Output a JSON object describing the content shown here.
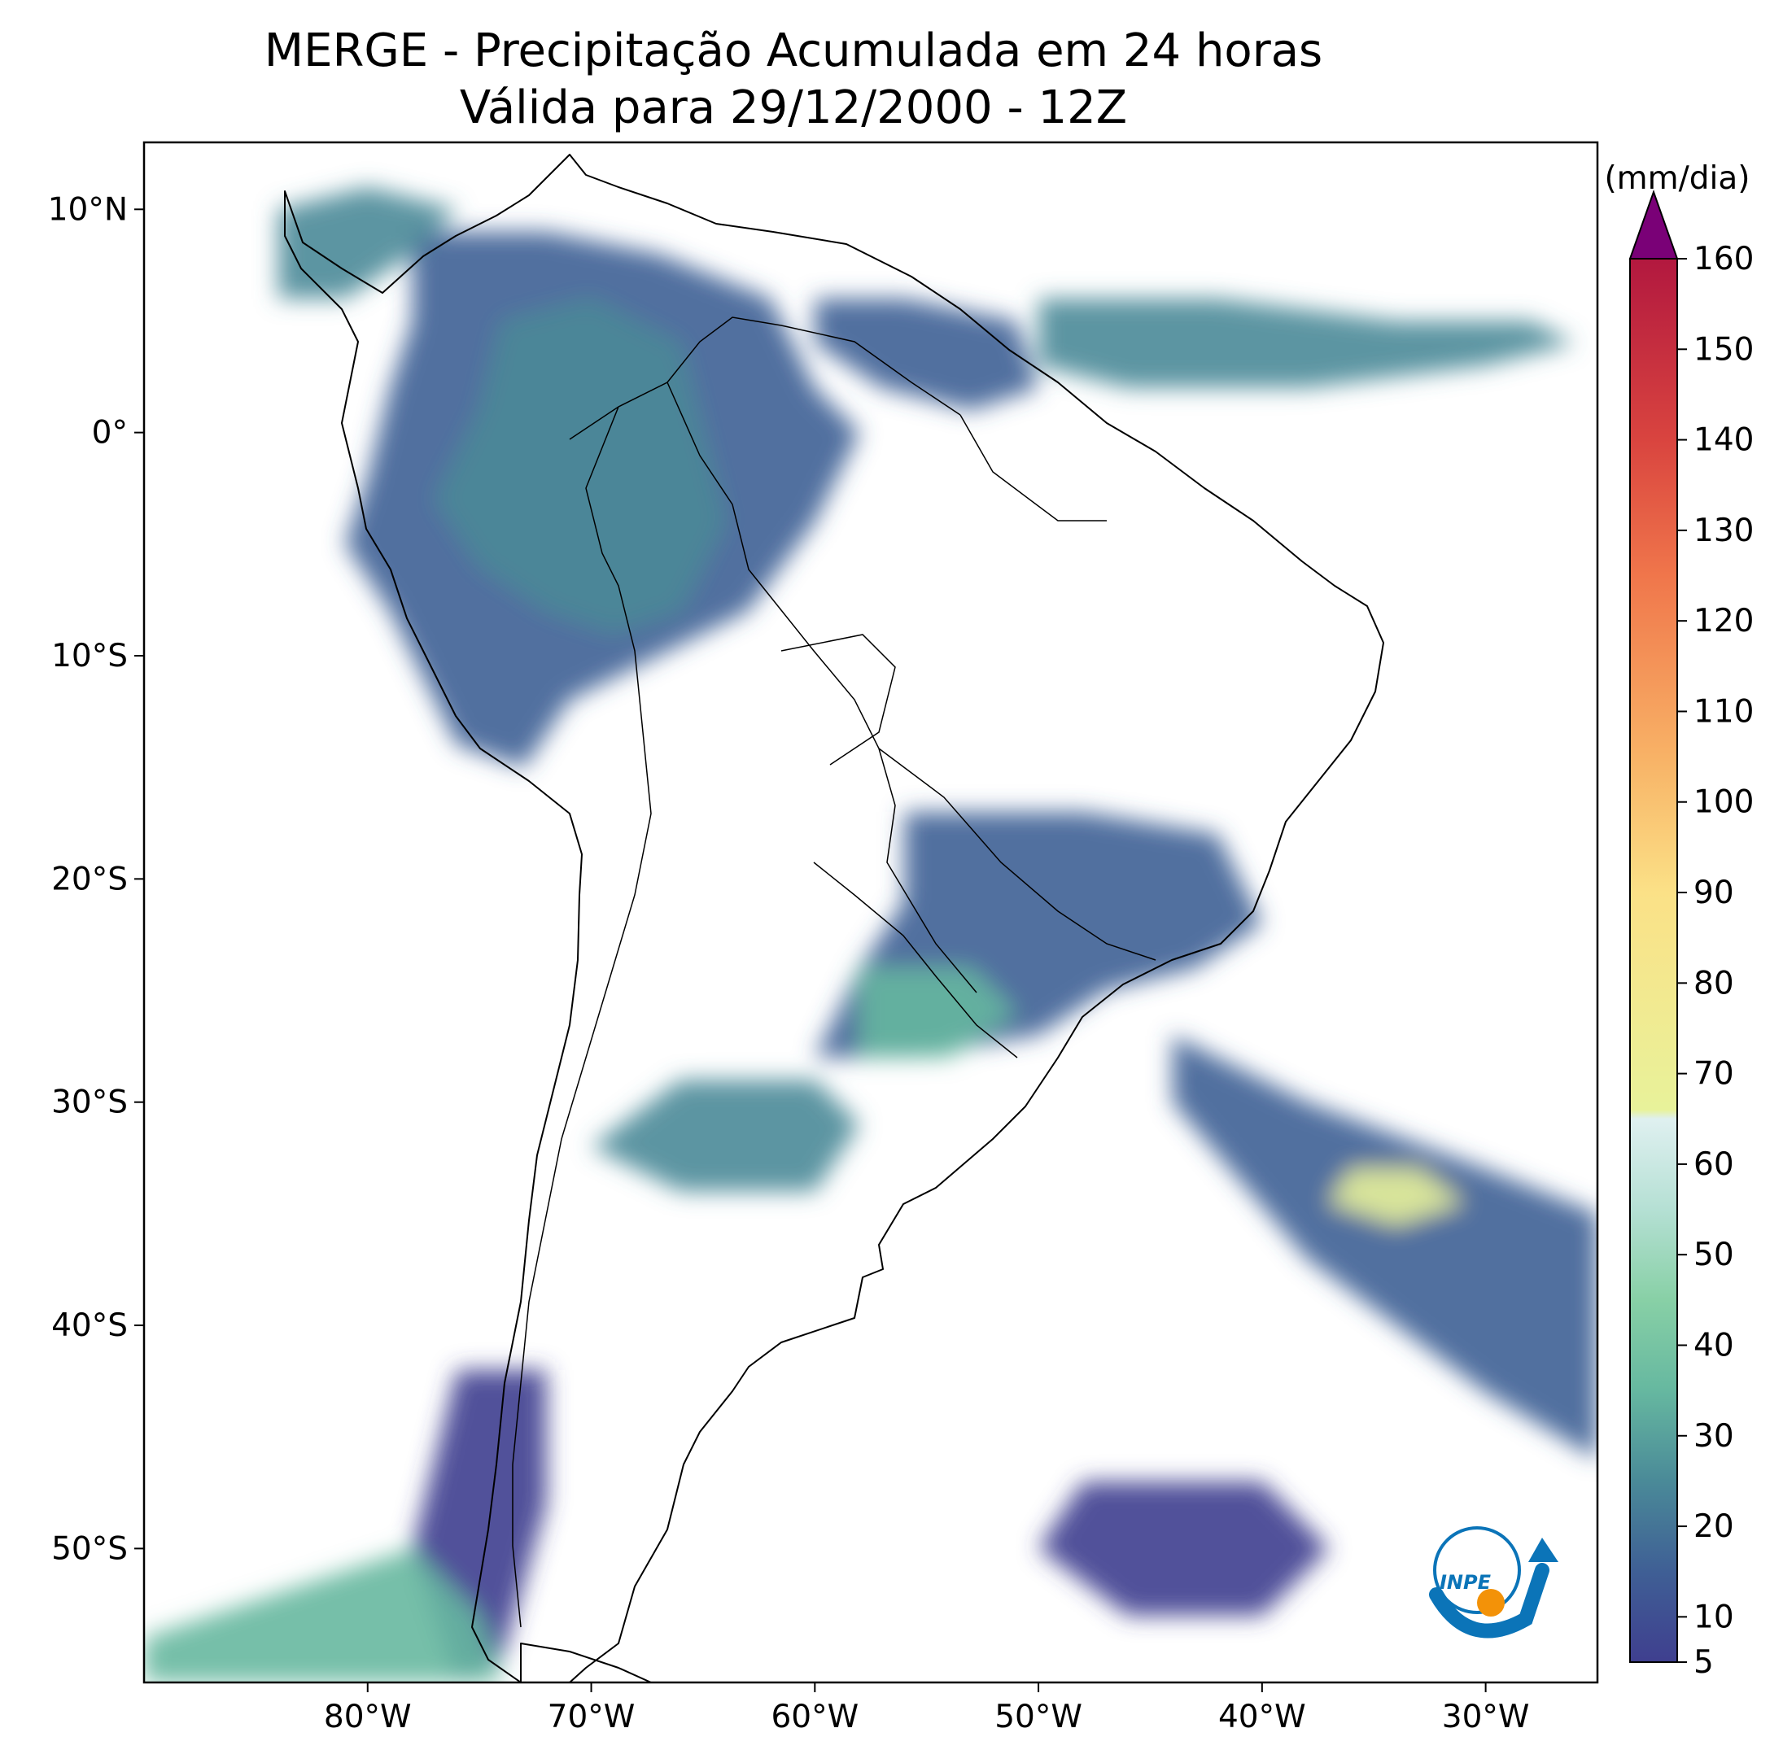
{
  "title": {
    "line1": "MERGE - Precipitação Acumulada em 24 horas",
    "line2": "Válida para 29/12/2000 - 12Z"
  },
  "map": {
    "lon_range": [
      -90,
      -25
    ],
    "lat_range": [
      -56,
      13
    ],
    "x_ticks": [
      {
        "lon": -80,
        "label": "80°W"
      },
      {
        "lon": -70,
        "label": "70°W"
      },
      {
        "lon": -60,
        "label": "60°W"
      },
      {
        "lon": -50,
        "label": "50°W"
      },
      {
        "lon": -40,
        "label": "40°W"
      },
      {
        "lon": -30,
        "label": "30°W"
      }
    ],
    "y_ticks": [
      {
        "lat": 10,
        "label": "10°N"
      },
      {
        "lat": 0,
        "label": "0°"
      },
      {
        "lat": -10,
        "label": "10°S"
      },
      {
        "lat": -20,
        "label": "20°S"
      },
      {
        "lat": -30,
        "label": "30°S"
      },
      {
        "lat": -40,
        "label": "40°S"
      },
      {
        "lat": -50,
        "label": "50°S"
      }
    ]
  },
  "colorbar": {
    "unit": "(mm/dia)",
    "min": 5,
    "max": 160,
    "ticks": [
      {
        "value": 5,
        "label": "5"
      },
      {
        "value": 10,
        "label": "10"
      },
      {
        "value": 20,
        "label": "20"
      },
      {
        "value": 30,
        "label": "30"
      },
      {
        "value": 40,
        "label": "40"
      },
      {
        "value": 50,
        "label": "50"
      },
      {
        "value": 60,
        "label": "60"
      },
      {
        "value": 70,
        "label": "70"
      },
      {
        "value": 80,
        "label": "80"
      },
      {
        "value": 90,
        "label": "90"
      },
      {
        "value": 100,
        "label": "100"
      },
      {
        "value": 110,
        "label": "110"
      },
      {
        "value": 120,
        "label": "120"
      },
      {
        "value": 130,
        "label": "130"
      },
      {
        "value": 140,
        "label": "140"
      },
      {
        "value": 150,
        "label": "150"
      },
      {
        "value": 160,
        "label": "160"
      }
    ],
    "extend_color": "#7a0177",
    "stops": [
      {
        "value": 5,
        "color": "#3f3f8f"
      },
      {
        "value": 15,
        "color": "#3f5f95"
      },
      {
        "value": 25,
        "color": "#4a8a98"
      },
      {
        "value": 35,
        "color": "#66b8a0"
      },
      {
        "value": 45,
        "color": "#88d0a6"
      },
      {
        "value": 55,
        "color": "#b5e0d4"
      },
      {
        "value": 65,
        "color": "#dff0f0"
      },
      {
        "value": 66,
        "color": "#e8f29a"
      },
      {
        "value": 90,
        "color": "#fbe187"
      },
      {
        "value": 105,
        "color": "#f8b266"
      },
      {
        "value": 125,
        "color": "#f0764b"
      },
      {
        "value": 140,
        "color": "#d9443f"
      },
      {
        "value": 160,
        "color": "#b2183f"
      }
    ]
  },
  "logo": {
    "text": "INPE",
    "colors": {
      "blue": "#0b74b8",
      "orange": "#f39208"
    }
  },
  "precipitation_areas": [
    {
      "name": "amazon-north",
      "level": 18,
      "points": [
        [
          -78,
          9
        ],
        [
          -72,
          9
        ],
        [
          -67,
          8
        ],
        [
          -62,
          6
        ],
        [
          -60,
          2
        ],
        [
          -58,
          0
        ],
        [
          -60,
          -4
        ],
        [
          -63,
          -8
        ],
        [
          -67,
          -10
        ],
        [
          -71,
          -12
        ],
        [
          -73,
          -15
        ],
        [
          -76,
          -14
        ],
        [
          -79,
          -8
        ],
        [
          -81,
          -5
        ],
        [
          -80,
          -2
        ],
        [
          -79,
          2
        ],
        [
          -78,
          5
        ]
      ]
    },
    {
      "name": "amazon-core",
      "level": 35,
      "points": [
        [
          -74,
          5
        ],
        [
          -70,
          6
        ],
        [
          -66,
          4
        ],
        [
          -65,
          0
        ],
        [
          -64,
          -4
        ],
        [
          -66,
          -8
        ],
        [
          -69,
          -9
        ],
        [
          -72,
          -8
        ],
        [
          -75,
          -6
        ],
        [
          -77,
          -3
        ],
        [
          -75,
          1
        ]
      ]
    },
    {
      "name": "central-america",
      "level": 30,
      "points": [
        [
          -84,
          10
        ],
        [
          -80,
          11
        ],
        [
          -76,
          10
        ],
        [
          -78,
          8
        ],
        [
          -81,
          6
        ],
        [
          -84,
          6
        ]
      ]
    },
    {
      "name": "guianas",
      "level": 20,
      "points": [
        [
          -60,
          6
        ],
        [
          -56,
          6
        ],
        [
          -51,
          5
        ],
        [
          -50,
          2
        ],
        [
          -53,
          1
        ],
        [
          -57,
          2
        ],
        [
          -60,
          4
        ]
      ]
    },
    {
      "name": "itcz-atlantic",
      "level": 30,
      "points": [
        [
          -50,
          6
        ],
        [
          -42,
          6
        ],
        [
          -34,
          5
        ],
        [
          -28,
          5
        ],
        [
          -26,
          4
        ],
        [
          -30,
          3
        ],
        [
          -38,
          2
        ],
        [
          -46,
          2
        ],
        [
          -50,
          3
        ]
      ]
    },
    {
      "name": "southeast-brazil",
      "level": 20,
      "points": [
        [
          -56,
          -17
        ],
        [
          -48,
          -17
        ],
        [
          -42,
          -18
        ],
        [
          -40,
          -22
        ],
        [
          -43,
          -24
        ],
        [
          -47,
          -25
        ],
        [
          -50,
          -27
        ],
        [
          -56,
          -28
        ],
        [
          -60,
          -28
        ],
        [
          -58,
          -24
        ],
        [
          -56,
          -21
        ]
      ]
    },
    {
      "name": "south-brazil-core",
      "level": 45,
      "points": [
        [
          -58,
          -24
        ],
        [
          -53,
          -24
        ],
        [
          -51,
          -26
        ],
        [
          -54,
          -28
        ],
        [
          -58,
          -28
        ]
      ]
    },
    {
      "name": "uruguay-argentina",
      "level": 30,
      "points": [
        [
          -66,
          -29
        ],
        [
          -60,
          -29
        ],
        [
          -58,
          -31
        ],
        [
          -60,
          -34
        ],
        [
          -66,
          -34
        ],
        [
          -70,
          -32
        ]
      ]
    },
    {
      "name": "south-atlantic-band",
      "level": 18,
      "points": [
        [
          -44,
          -27
        ],
        [
          -38,
          -30
        ],
        [
          -30,
          -33
        ],
        [
          -25,
          -35
        ],
        [
          -25,
          -46
        ],
        [
          -30,
          -43
        ],
        [
          -38,
          -37
        ],
        [
          -44,
          -30
        ]
      ]
    },
    {
      "name": "south-atlantic-core",
      "level": 80,
      "points": [
        [
          -36,
          -33
        ],
        [
          -33,
          -33
        ],
        [
          -31,
          -34.5
        ],
        [
          -34,
          -35.5
        ],
        [
          -37,
          -34.5
        ]
      ]
    },
    {
      "name": "patagonia-coast",
      "level": 10,
      "points": [
        [
          -76,
          -42
        ],
        [
          -72,
          -42
        ],
        [
          -72,
          -48
        ],
        [
          -74,
          -55
        ],
        [
          -76,
          -56
        ],
        [
          -78,
          -50
        ]
      ]
    },
    {
      "name": "southeast-pacific",
      "level": 45,
      "points": [
        [
          -90,
          -54
        ],
        [
          -84,
          -52
        ],
        [
          -78,
          -50
        ],
        [
          -75,
          -53
        ],
        [
          -74,
          -56
        ],
        [
          -90,
          -56
        ]
      ]
    },
    {
      "name": "south-atlantic-southern",
      "level": 12,
      "points": [
        [
          -48,
          -47
        ],
        [
          -40,
          -47
        ],
        [
          -37,
          -50
        ],
        [
          -40,
          -53
        ],
        [
          -46,
          -53
        ],
        [
          -50,
          -50
        ]
      ]
    }
  ]
}
